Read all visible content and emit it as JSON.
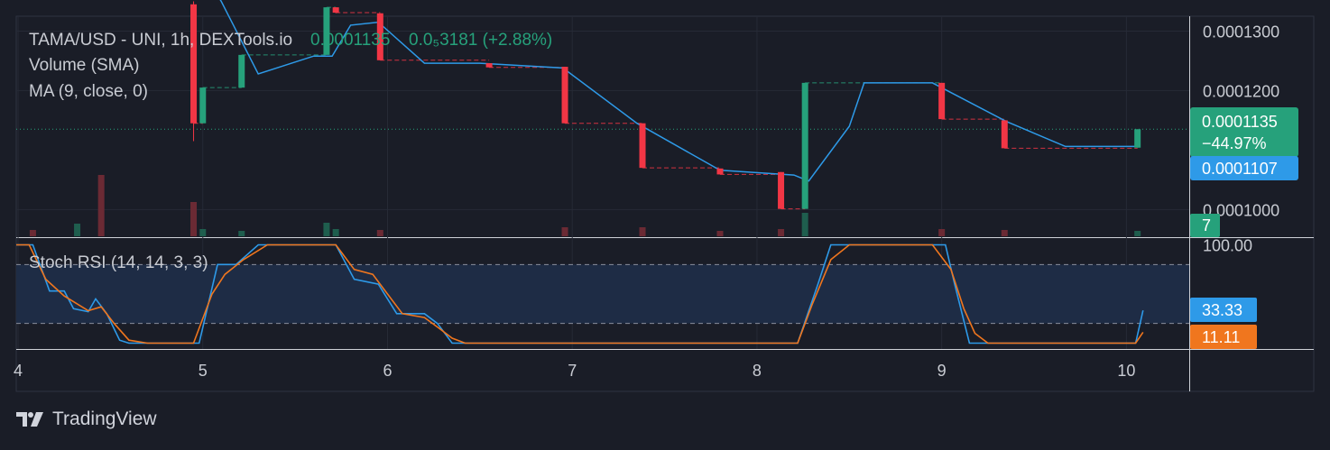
{
  "header": {
    "symbol": "TAMA/USD - UNI, 1h, DEXTools.io",
    "ohlc_last": "0.0001135",
    "change": "0.0₅3181 (+2.88%)",
    "volume_label": "Volume (SMA)",
    "ma_label": "MA (9, close, 0)"
  },
  "stoch_label": "Stoch RSI (14, 14, 3, 3)",
  "price_badges": {
    "last_price": "0.0001135",
    "last_change": "−44.97%",
    "ma_value": "0.0001107",
    "volume_value": "7"
  },
  "stoch_badges": {
    "k": "33.33",
    "d": "11.11"
  },
  "brand": {
    "name": "TradingView",
    "icon": "tradingview-logo-icon"
  },
  "colors": {
    "background": "#1a1d27",
    "up": "#26a17b",
    "down": "#f23645",
    "ma_line": "#2e9ae8",
    "stoch_k": "#2e9ae8",
    "stoch_d": "#f0761e",
    "stoch_band": "#1e2c45",
    "text": "#c9ccd3"
  },
  "chart_data": [
    {
      "type": "candlestick",
      "title": "TAMA/USD - UNI, 1h, DEXTools.io",
      "x_ticks": [
        "4",
        "5",
        "6",
        "7",
        "8",
        "9",
        "10"
      ],
      "x_range": [
        3.99,
        10.34
      ],
      "y_ticks": [
        "0.0001300",
        "0.0001200",
        "0.0001000"
      ],
      "ylim": [
        9.55e-05,
        0.0001325
      ],
      "last_price_line": 0.0001135,
      "candles": [
        {
          "t": 4.95,
          "o": 0.0001345,
          "h": 0.000135,
          "c": 0.0001145,
          "l": 0.0001115
        },
        {
          "t": 5.0,
          "o": 0.0001145,
          "h": 0.0001205,
          "c": 0.0001205,
          "l": 0.0001145
        },
        {
          "t": 5.21,
          "o": 0.0001205,
          "h": 0.000126,
          "c": 0.000126,
          "l": 0.0001205
        },
        {
          "t": 5.67,
          "o": 0.000126,
          "h": 0.000134,
          "c": 0.000134,
          "l": 0.000126
        },
        {
          "t": 5.72,
          "o": 0.000134,
          "h": 0.000134,
          "c": 0.0001331,
          "l": 0.000133
        },
        {
          "t": 5.96,
          "o": 0.000133,
          "h": 0.000133,
          "c": 0.0001251,
          "l": 0.0001251
        },
        {
          "t": 6.55,
          "o": 0.0001246,
          "h": 0.0001246,
          "c": 0.0001239,
          "l": 0.0001239
        },
        {
          "t": 6.96,
          "o": 0.000124,
          "h": 0.000124,
          "c": 0.0001145,
          "l": 0.0001145
        },
        {
          "t": 7.38,
          "o": 0.0001145,
          "h": 0.0001145,
          "c": 0.000107,
          "l": 0.000107
        },
        {
          "t": 7.8,
          "o": 0.0001069,
          "h": 0.0001069,
          "c": 0.0001059,
          "l": 0.0001059
        },
        {
          "t": 8.13,
          "o": 0.0001063,
          "h": 0.0001063,
          "c": 0.0001001,
          "l": 0.0001001
        },
        {
          "t": 8.26,
          "o": 0.0001001,
          "h": 0.0001213,
          "c": 0.0001213,
          "l": 0.0001001
        },
        {
          "t": 9.0,
          "o": 0.0001213,
          "h": 0.0001213,
          "c": 0.0001152,
          "l": 0.0001152
        },
        {
          "t": 9.34,
          "o": 0.000115,
          "h": 0.000115,
          "c": 0.0001103,
          "l": 0.0001103
        },
        {
          "t": 10.06,
          "o": 0.0001104,
          "h": 0.0001135,
          "c": 0.0001135,
          "l": 0.0001104
        }
      ],
      "ma": {
        "name": "MA (9, close, 0)",
        "points": [
          [
            4.95,
            0.0001425
          ],
          [
            5.1,
            0.000135
          ],
          [
            5.3,
            0.0001228
          ],
          [
            5.6,
            0.0001258
          ],
          [
            5.7,
            0.0001258
          ],
          [
            5.8,
            0.000131
          ],
          [
            5.95,
            0.0001315
          ],
          [
            6.2,
            0.0001246
          ],
          [
            6.5,
            0.0001246
          ],
          [
            6.95,
            0.0001238
          ],
          [
            7.35,
            0.0001145
          ],
          [
            7.8,
            0.0001066
          ],
          [
            8.2,
            0.0001058
          ],
          [
            8.28,
            0.0001048
          ],
          [
            8.5,
            0.000114
          ],
          [
            8.58,
            0.0001213
          ],
          [
            8.95,
            0.0001213
          ],
          [
            9.35,
            0.0001148
          ],
          [
            9.67,
            0.0001106
          ],
          [
            10.05,
            0.0001106
          ],
          [
            10.07,
            0.0001107
          ]
        ]
      },
      "volume": {
        "name": "Volume (SMA)",
        "bars": [
          {
            "t": 4.08,
            "v": 7,
            "dir": "down"
          },
          {
            "t": 4.32,
            "v": 14,
            "dir": "up"
          },
          {
            "t": 4.45,
            "v": 68,
            "dir": "down"
          },
          {
            "t": 4.95,
            "v": 38,
            "dir": "down"
          },
          {
            "t": 5.0,
            "v": 8,
            "dir": "up"
          },
          {
            "t": 5.21,
            "v": 6,
            "dir": "up"
          },
          {
            "t": 5.67,
            "v": 15,
            "dir": "up"
          },
          {
            "t": 5.72,
            "v": 8,
            "dir": "up"
          },
          {
            "t": 5.96,
            "v": 7,
            "dir": "down"
          },
          {
            "t": 6.96,
            "v": 10,
            "dir": "down"
          },
          {
            "t": 7.38,
            "v": 10,
            "dir": "down"
          },
          {
            "t": 7.8,
            "v": 6,
            "dir": "down"
          },
          {
            "t": 8.13,
            "v": 8,
            "dir": "down"
          },
          {
            "t": 8.26,
            "v": 26,
            "dir": "up"
          },
          {
            "t": 9.0,
            "v": 8,
            "dir": "down"
          },
          {
            "t": 9.34,
            "v": 7,
            "dir": "down"
          },
          {
            "t": 10.06,
            "v": 6,
            "dir": "up"
          }
        ]
      }
    },
    {
      "type": "line",
      "title": "Stoch RSI (14, 14, 3, 3)",
      "y_ticks": [
        "100.00"
      ],
      "ylim": [
        -6,
        106
      ],
      "band": [
        20,
        80
      ],
      "series": [
        {
          "name": "K",
          "x": [
            3.99,
            4.08,
            4.17,
            4.25,
            4.3,
            4.38,
            4.42,
            4.48,
            4.55,
            4.6,
            4.7,
            4.98,
            5.03,
            5.08,
            5.18,
            5.3,
            5.38,
            5.65,
            5.72,
            5.82,
            5.95,
            6.05,
            6.2,
            6.27,
            6.35,
            6.5,
            8.22,
            8.33,
            8.4,
            8.55,
            8.95,
            9.02,
            9.07,
            9.15,
            9.3,
            9.9,
            10.05,
            10.09
          ],
          "values": [
            100,
            100,
            53,
            53,
            35,
            32,
            45,
            30,
            3,
            0,
            0,
            0,
            40,
            80,
            80,
            100,
            100,
            100,
            100,
            65,
            60,
            30,
            30,
            20,
            0,
            0,
            0,
            60,
            100,
            100,
            100,
            100,
            60,
            0,
            0,
            0,
            0,
            33.33
          ]
        },
        {
          "name": "D",
          "x": [
            3.99,
            4.06,
            4.15,
            4.25,
            4.38,
            4.45,
            4.52,
            4.6,
            4.7,
            4.95,
            5.05,
            5.12,
            5.22,
            5.35,
            5.45,
            5.65,
            5.72,
            5.82,
            5.92,
            5.98,
            6.08,
            6.2,
            6.28,
            6.35,
            6.42,
            8.22,
            8.3,
            8.4,
            8.5,
            8.95,
            9.05,
            9.12,
            9.18,
            9.25,
            10.05,
            10.09
          ],
          "values": [
            100,
            100,
            65,
            48,
            33,
            37,
            20,
            3,
            0,
            0,
            50,
            70,
            85,
            100,
            100,
            100,
            100,
            75,
            70,
            55,
            30,
            26,
            15,
            5,
            0,
            0,
            40,
            85,
            100,
            100,
            75,
            35,
            10,
            0,
            0,
            11.11
          ]
        }
      ]
    }
  ]
}
